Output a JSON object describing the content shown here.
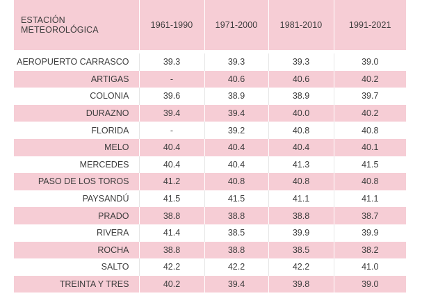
{
  "table": {
    "header": {
      "station": "ESTACIÓN METEOROLÓGICA",
      "periods": [
        "1961-1990",
        "1971-2000",
        "1981-2010",
        "1991-2021"
      ]
    },
    "rows": [
      {
        "station": "AEROPUERTO CARRASCO",
        "values": [
          "39.3",
          "39.3",
          "39.3",
          "39.0"
        ]
      },
      {
        "station": "ARTIGAS",
        "values": [
          "-",
          "40.6",
          "40.6",
          "40.2"
        ]
      },
      {
        "station": "COLONIA",
        "values": [
          "39.6",
          "38.9",
          "38.9",
          "39.7"
        ]
      },
      {
        "station": "DURAZNO",
        "values": [
          "39.4",
          "39.4",
          "40.0",
          "40.2"
        ]
      },
      {
        "station": "FLORIDA",
        "values": [
          "-",
          "39.2",
          "40.8",
          "40.8"
        ]
      },
      {
        "station": "MELO",
        "values": [
          "40.4",
          "40.4",
          "40.4",
          "40.1"
        ]
      },
      {
        "station": "MERCEDES",
        "values": [
          "40.4",
          "40.4",
          "41.3",
          "41.5"
        ]
      },
      {
        "station": "PASO DE LOS TOROS",
        "values": [
          "41.2",
          "40.8",
          "40.8",
          "40.8"
        ]
      },
      {
        "station": "PAYSANDÚ",
        "values": [
          "41.5",
          "41.5",
          "41.1",
          "41.1"
        ]
      },
      {
        "station": "PRADO",
        "values": [
          "38.8",
          "38.8",
          "38.8",
          "38.7"
        ]
      },
      {
        "station": "RIVERA",
        "values": [
          "41.4",
          "38.5",
          "39.9",
          "39.9"
        ]
      },
      {
        "station": "ROCHA",
        "values": [
          "38.8",
          "38.8",
          "38.5",
          "38.2"
        ]
      },
      {
        "station": "SALTO",
        "values": [
          "42.2",
          "42.2",
          "42.2",
          "41.0"
        ]
      },
      {
        "station": "TREINTA Y TRES",
        "values": [
          "40.2",
          "39.4",
          "39.8",
          "39.0"
        ]
      }
    ]
  },
  "colors": {
    "accent": "#f6cdd5",
    "text": "#3d3d3d"
  }
}
